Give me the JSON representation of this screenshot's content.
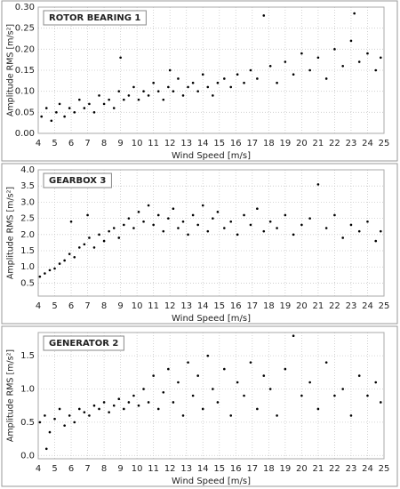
{
  "chart_data": [
    {
      "type": "scatter",
      "title": "ROTOR BEARING 1",
      "x_label": "Wind Speed [m/s]",
      "y_label": "Amplitude RMS [m/s²]",
      "color": "#000000",
      "grid": true,
      "xlim": [
        4,
        25
      ],
      "xticks": [
        4,
        5,
        6,
        7,
        8,
        9,
        10,
        11,
        12,
        13,
        14,
        15,
        16,
        17,
        18,
        19,
        20,
        21,
        22,
        23,
        24,
        25
      ],
      "ylim": [
        0,
        0.3
      ],
      "yticks": [
        {
          "value": 0,
          "label": "0.00"
        },
        0.05,
        {
          "value": 0.1,
          "label": "0.10"
        },
        0.15,
        {
          "value": 0.2,
          "label": "0.20"
        },
        0.25,
        {
          "value": 0.3,
          "label": "0.30"
        }
      ],
      "x": [
        4.2,
        4.5,
        4.8,
        5.1,
        5.3,
        5.6,
        5.9,
        6.2,
        6.5,
        6.8,
        7.1,
        7.4,
        7.7,
        8.0,
        8.3,
        8.6,
        8.9,
        9.2,
        9.5,
        9.8,
        10.1,
        10.4,
        10.7,
        11.0,
        11.3,
        11.6,
        11.9,
        12.2,
        12.5,
        12.8,
        13.1,
        13.4,
        13.7,
        14.0,
        14.3,
        14.6,
        14.9,
        15.3,
        15.7,
        16.1,
        16.5,
        16.9,
        17.3,
        17.7,
        18.1,
        18.5,
        19.0,
        19.5,
        20.0,
        20.5,
        21.0,
        21.5,
        22.0,
        22.5,
        23.0,
        23.2,
        23.5,
        24.0,
        24.5,
        24.8,
        9.0,
        12.0
      ],
      "values": [
        0.04,
        0.06,
        0.03,
        0.05,
        0.07,
        0.04,
        0.06,
        0.05,
        0.08,
        0.06,
        0.07,
        0.05,
        0.09,
        0.07,
        0.08,
        0.06,
        0.1,
        0.08,
        0.09,
        0.11,
        0.08,
        0.1,
        0.09,
        0.12,
        0.1,
        0.08,
        0.11,
        0.1,
        0.13,
        0.09,
        0.11,
        0.12,
        0.1,
        0.14,
        0.11,
        0.09,
        0.12,
        0.13,
        0.11,
        0.14,
        0.12,
        0.15,
        0.13,
        0.28,
        0.16,
        0.12,
        0.17,
        0.14,
        0.19,
        0.15,
        0.18,
        0.13,
        0.2,
        0.16,
        0.22,
        0.285,
        0.17,
        0.19,
        0.15,
        0.18,
        0.18,
        0.15
      ]
    },
    {
      "type": "scatter",
      "title": "GEARBOX 3",
      "x_label": "Wind Speed [m/s]",
      "y_label": "Amplitude RMS [m/s²]",
      "color": "#000000",
      "grid": true,
      "xlim": [
        4,
        25
      ],
      "xticks": [
        4,
        5,
        6,
        7,
        8,
        9,
        10,
        11,
        12,
        13,
        14,
        15,
        16,
        17,
        18,
        19,
        20,
        21,
        22,
        23,
        24,
        25
      ],
      "ylim": [
        0.1,
        4.0
      ],
      "yticks": [
        0.5,
        {
          "value": 1,
          "label": "1.0"
        },
        1.5,
        {
          "value": 2,
          "label": "2.0"
        },
        2.5,
        {
          "value": 3,
          "label": "3.0"
        },
        3.5,
        {
          "value": 4,
          "label": "4.0"
        }
      ],
      "x": [
        4.1,
        4.4,
        4.7,
        5.0,
        5.3,
        5.6,
        5.9,
        6.2,
        6.5,
        6.8,
        7.1,
        7.4,
        7.7,
        8.0,
        8.3,
        8.6,
        8.9,
        9.2,
        9.5,
        9.8,
        10.1,
        10.4,
        10.7,
        11.0,
        11.3,
        11.6,
        11.9,
        12.2,
        12.5,
        12.8,
        13.1,
        13.4,
        13.7,
        14.0,
        14.3,
        14.6,
        14.9,
        15.3,
        15.7,
        16.1,
        16.5,
        16.9,
        17.3,
        17.7,
        18.1,
        18.5,
        19.0,
        19.5,
        20.0,
        20.5,
        21.0,
        21.5,
        22.0,
        22.5,
        23.0,
        23.5,
        24.0,
        24.5,
        24.8,
        6.0,
        7.0
      ],
      "values": [
        0.7,
        0.8,
        0.9,
        0.95,
        1.1,
        1.2,
        1.4,
        1.3,
        1.6,
        1.7,
        1.9,
        1.6,
        2.0,
        1.8,
        2.1,
        2.2,
        1.9,
        2.3,
        2.5,
        2.2,
        2.7,
        2.4,
        2.9,
        2.3,
        2.6,
        2.1,
        2.5,
        2.8,
        2.2,
        2.4,
        2.0,
        2.6,
        2.3,
        2.9,
        2.1,
        2.5,
        2.7,
        2.2,
        2.4,
        2.0,
        2.6,
        2.3,
        2.8,
        2.1,
        2.4,
        2.2,
        2.6,
        2.0,
        2.3,
        2.5,
        3.55,
        2.2,
        2.6,
        1.9,
        2.3,
        2.1,
        2.4,
        1.8,
        2.1,
        2.4,
        2.6
      ]
    },
    {
      "type": "scatter",
      "title": "GENERATOR 2",
      "x_label": "Wind Speed [m/s]",
      "y_label": "Amplitude RMS [m/s²]",
      "color": "#000000",
      "grid": true,
      "xlim": [
        4,
        25
      ],
      "xticks": [
        4,
        5,
        6,
        7,
        8,
        9,
        10,
        11,
        12,
        13,
        14,
        15,
        16,
        17,
        18,
        19,
        20,
        21,
        22,
        23,
        24,
        25
      ],
      "ylim": [
        -0.05,
        1.85
      ],
      "yticks": [
        {
          "value": 0,
          "label": "0.0"
        },
        0.5,
        {
          "value": 1,
          "label": "1.0"
        },
        1.5
      ],
      "x": [
        4.1,
        4.4,
        4.7,
        5.0,
        5.3,
        5.6,
        5.9,
        6.2,
        6.5,
        6.8,
        7.1,
        7.4,
        7.7,
        8.0,
        8.3,
        8.6,
        8.9,
        9.2,
        9.5,
        9.8,
        10.1,
        10.4,
        10.7,
        11.0,
        11.3,
        11.6,
        11.9,
        12.2,
        12.5,
        12.8,
        13.1,
        13.4,
        13.7,
        14.0,
        14.3,
        14.6,
        14.9,
        15.3,
        15.7,
        16.1,
        16.5,
        16.9,
        17.3,
        17.7,
        18.1,
        18.5,
        19.0,
        19.5,
        20.0,
        20.5,
        21.0,
        21.5,
        22.0,
        22.5,
        23.0,
        23.5,
        24.0,
        24.5,
        24.8,
        4.5
      ],
      "values": [
        0.5,
        0.6,
        0.35,
        0.55,
        0.7,
        0.45,
        0.6,
        0.5,
        0.7,
        0.65,
        0.6,
        0.75,
        0.7,
        0.8,
        0.65,
        0.75,
        0.85,
        0.7,
        0.8,
        0.9,
        0.75,
        1.0,
        0.8,
        1.2,
        0.7,
        0.95,
        1.3,
        0.8,
        1.1,
        0.6,
        1.4,
        0.9,
        1.2,
        0.7,
        1.5,
        1.0,
        0.8,
        1.3,
        0.6,
        1.1,
        0.9,
        1.4,
        0.7,
        1.2,
        1.0,
        0.6,
        1.3,
        1.8,
        0.9,
        1.1,
        0.7,
        1.4,
        0.9,
        1.0,
        0.6,
        1.2,
        0.9,
        1.1,
        0.8,
        0.1
      ]
    }
  ]
}
